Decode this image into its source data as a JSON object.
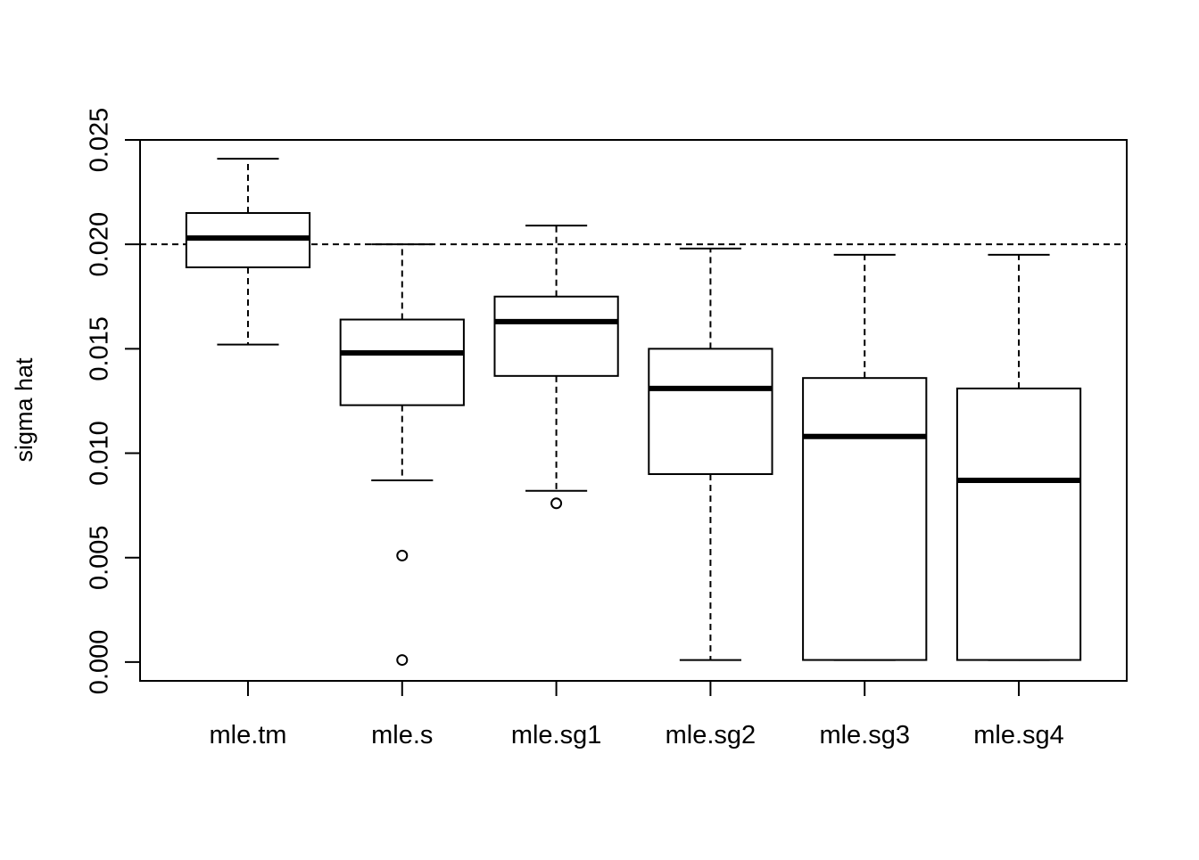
{
  "chart_data": {
    "type": "boxplot",
    "title": "",
    "xlabel": "",
    "ylabel": "sigma hat",
    "ylim": [
      -0.0009,
      0.025
    ],
    "y_ticks": [
      "0.000",
      "0.005",
      "0.010",
      "0.015",
      "0.020",
      "0.025"
    ],
    "y_tick_values": [
      0.0,
      0.005,
      0.01,
      0.015,
      0.02,
      0.025
    ],
    "categories": [
      "mle.tm",
      "mle.s",
      "mle.sg1",
      "mle.sg2",
      "mle.sg3",
      "mle.sg4"
    ],
    "reference_line": 0.02,
    "boxes": [
      {
        "name": "mle.tm",
        "whisker_low": 0.0152,
        "q1": 0.0189,
        "median": 0.0203,
        "q3": 0.0215,
        "whisker_high": 0.0241,
        "outliers": []
      },
      {
        "name": "mle.s",
        "whisker_low": 0.0087,
        "q1": 0.0123,
        "median": 0.0148,
        "q3": 0.0164,
        "whisker_high": 0.02,
        "outliers": [
          0.0051,
          0.0001
        ]
      },
      {
        "name": "mle.sg1",
        "whisker_low": 0.0082,
        "q1": 0.0137,
        "median": 0.0163,
        "q3": 0.0175,
        "whisker_high": 0.0209,
        "outliers": [
          0.0076
        ]
      },
      {
        "name": "mle.sg2",
        "whisker_low": 0.0001,
        "q1": 0.009,
        "median": 0.0131,
        "q3": 0.015,
        "whisker_high": 0.0198,
        "outliers": []
      },
      {
        "name": "mle.sg3",
        "whisker_low": 0.0001,
        "q1": 0.0001,
        "median": 0.0108,
        "q3": 0.0136,
        "whisker_high": 0.0195,
        "outliers": []
      },
      {
        "name": "mle.sg4",
        "whisker_low": 0.0001,
        "q1": 0.0001,
        "median": 0.0087,
        "q3": 0.0131,
        "whisker_high": 0.0195,
        "outliers": []
      }
    ],
    "grid": false,
    "legend": "none",
    "colors": {
      "stroke": "#000000",
      "box_fill": "#ffffff",
      "background": "#ffffff"
    }
  }
}
